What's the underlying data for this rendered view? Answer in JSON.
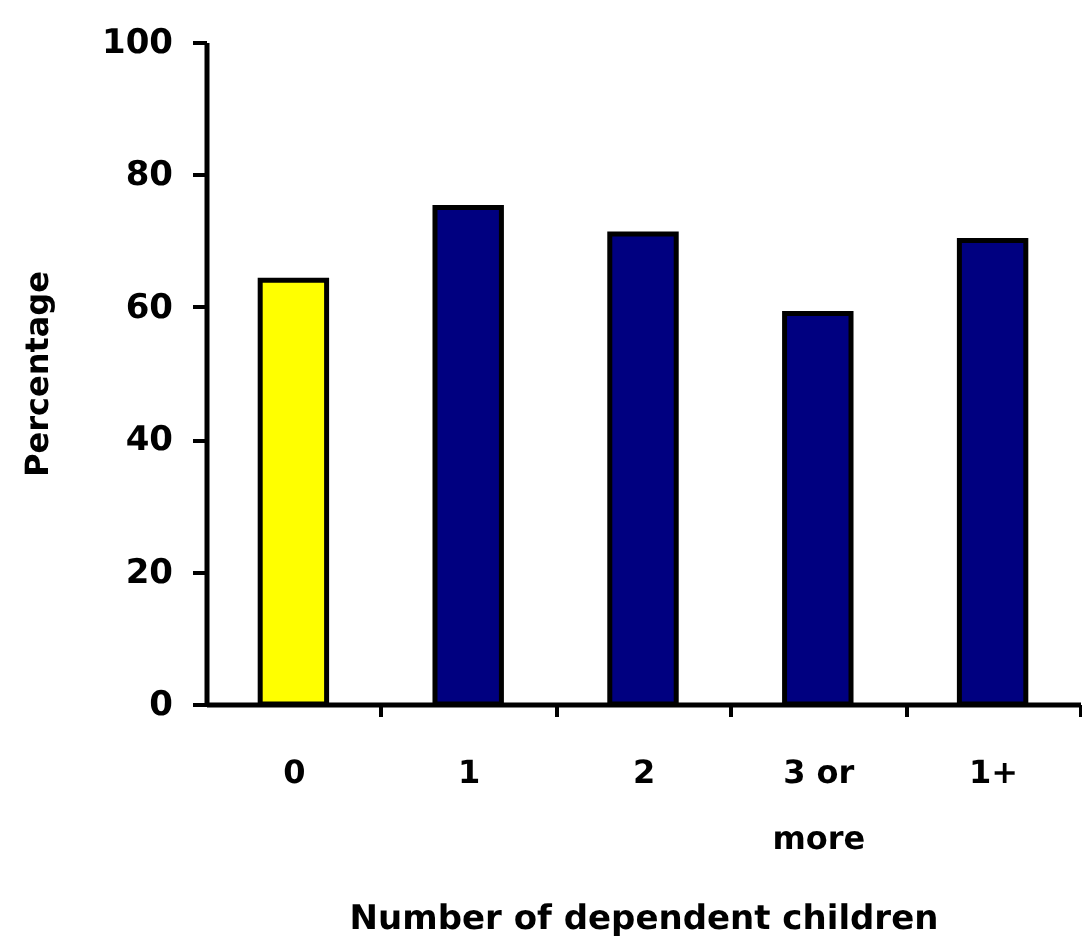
{
  "chart_data": {
    "type": "bar",
    "xlabel": "Number of dependent children",
    "ylabel": "Percentage",
    "categories": [
      "0",
      "1",
      "2",
      "3 or more",
      "1+"
    ],
    "values": [
      64,
      75,
      71,
      59,
      70
    ],
    "colors": [
      "#ffff00",
      "#000080",
      "#000080",
      "#000080",
      "#000080"
    ],
    "ylim": [
      0,
      100
    ],
    "yticks": [
      0,
      20,
      40,
      60,
      80,
      100
    ]
  }
}
